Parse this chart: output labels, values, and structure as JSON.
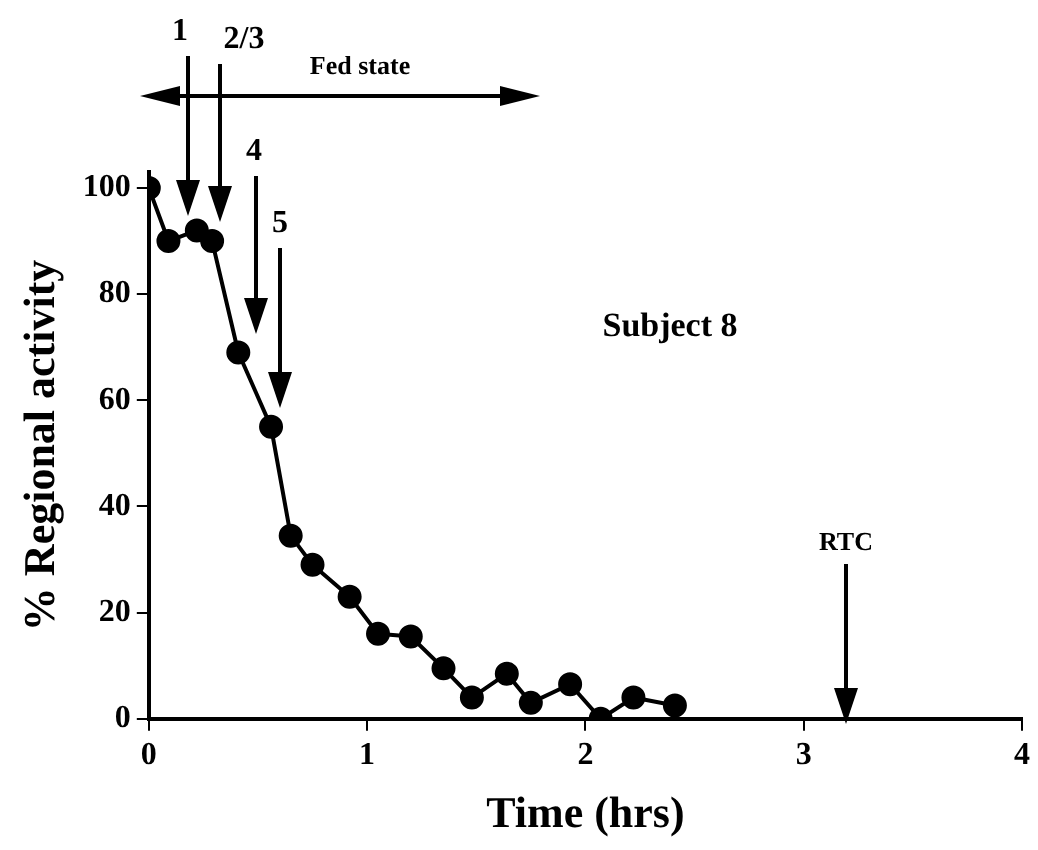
{
  "chart_data": {
    "type": "line",
    "xlabel": "Time (hrs)",
    "ylabel": "% Regional activity",
    "x": [
      0,
      0.09,
      0.22,
      0.29,
      0.41,
      0.56,
      0.65,
      0.75,
      0.92,
      1.05,
      1.2,
      1.35,
      1.48,
      1.64,
      1.75,
      1.93,
      2.07,
      2.22,
      2.41
    ],
    "series": [
      {
        "color": "#000000",
        "values": [
          100,
          90,
          92,
          90,
          69,
          55,
          34.5,
          29,
          23,
          16,
          15.5,
          9.5,
          4,
          8.5,
          3,
          6.5,
          0,
          4,
          2.5
        ]
      }
    ],
    "xlim": [
      0,
      4
    ],
    "xticks": [
      0,
      1,
      2,
      3,
      4
    ],
    "ylim": [
      0,
      103
    ],
    "yticks": [
      0,
      20,
      40,
      60,
      80,
      100
    ],
    "grid": false,
    "legend": false,
    "marker": "circle",
    "line_style": "solid",
    "annotations": [
      "1",
      "2/3",
      "Fed state",
      "4",
      "5",
      "Subject 8",
      "RTC"
    ]
  }
}
